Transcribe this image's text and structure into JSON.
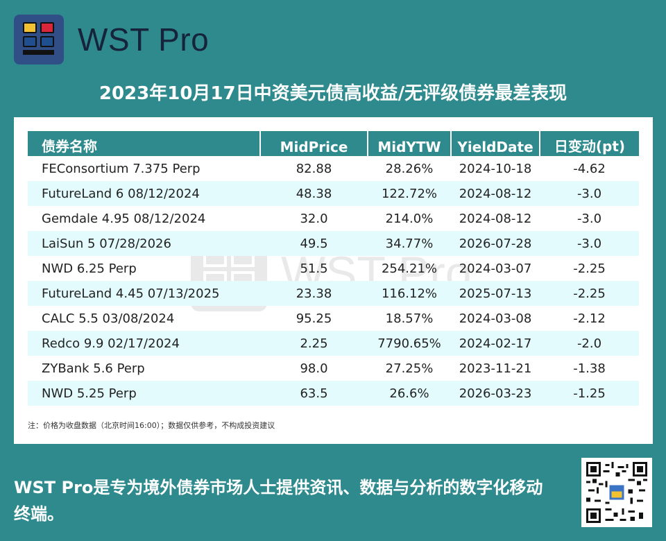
{
  "brand": {
    "name": "WST Pro"
  },
  "title": "2023年10月17日中资美元债高收益/无评级债券最差表现",
  "table": {
    "headers": [
      "债券名称",
      "MidPrice",
      "MidYTW",
      "YieldDate",
      "日变动(pt)"
    ],
    "rows": [
      [
        "FEConsortium 7.375 Perp",
        "82.88",
        "28.26%",
        "2024-10-18",
        "-4.62"
      ],
      [
        "FutureLand 6 08/12/2024",
        "48.38",
        "122.72%",
        "2024-08-12",
        "-3.0"
      ],
      [
        "Gemdale 4.95 08/12/2024",
        "32.0",
        "214.0%",
        "2024-08-12",
        "-3.0"
      ],
      [
        "LaiSun 5 07/28/2026",
        "49.5",
        "34.77%",
        "2026-07-28",
        "-3.0"
      ],
      [
        "NWD 6.25 Perp",
        "51.5",
        "254.21%",
        "2024-03-07",
        "-2.25"
      ],
      [
        "FutureLand 4.45 07/13/2025",
        "23.38",
        "116.12%",
        "2025-07-13",
        "-2.25"
      ],
      [
        "CALC 5.5 03/08/2024",
        "95.25",
        "18.57%",
        "2024-03-08",
        "-2.12"
      ],
      [
        "Redco 9.9 02/17/2024",
        "2.25",
        "7790.65%",
        "2024-02-17",
        "-2.0"
      ],
      [
        "ZYBank 5.6 Perp",
        "98.0",
        "27.25%",
        "2023-11-21",
        "-1.38"
      ],
      [
        "NWD 5.25 Perp",
        "63.5",
        "26.6%",
        "2026-03-23",
        "-1.25"
      ]
    ]
  },
  "note": "注：价格为收盘数据（北京时间16:00）；数据仅供参考，不构成投资建议",
  "footer": "WST Pro是专为境外债券市场人士提供资讯、数据与分析的数字化移动终端。",
  "colors": {
    "background": "#2e8a8d",
    "header_row": "#2e8a8d",
    "alt_row": "#e3fbfd",
    "logo_bg": "#2f4f86"
  },
  "icons": {
    "logo": "wst-logo-icon",
    "qr": "qr-code-icon"
  }
}
